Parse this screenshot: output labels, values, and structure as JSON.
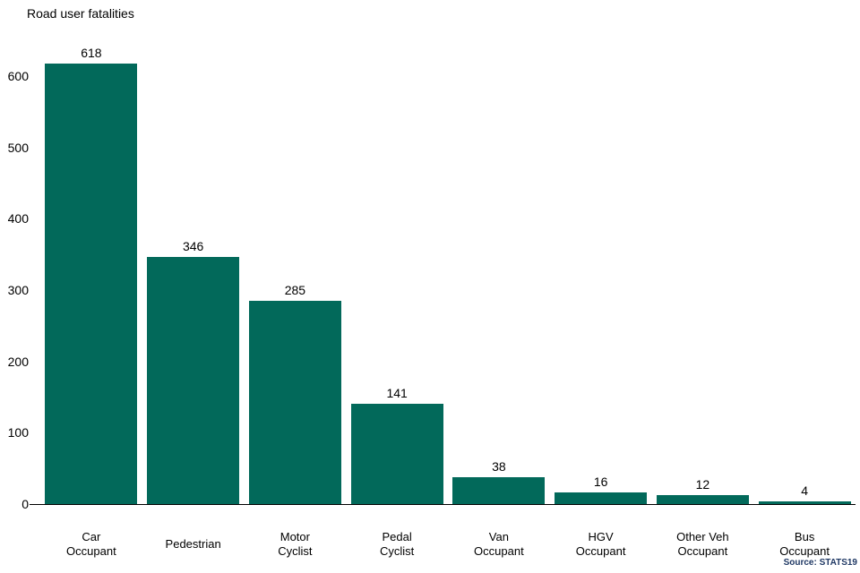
{
  "header": {
    "title": "Road user fatalities"
  },
  "footer": {
    "source": "Source: STATS19"
  },
  "chart_data": {
    "type": "bar",
    "title": "Road user fatalities",
    "categories": [
      "Car\nOccupant",
      "Pedestrian",
      "Motor\nCyclist",
      "Pedal\nCyclist",
      "Van\nOccupant",
      "HGV\nOccupant",
      "Other Veh\nOccupant",
      "Bus\nOccupant"
    ],
    "values": [
      618,
      346,
      285,
      141,
      38,
      16,
      12,
      4
    ],
    "xlabel": "",
    "ylabel": "",
    "ylim": [
      0,
      620
    ],
    "yticks": [
      0,
      100,
      200,
      300,
      400,
      500,
      600
    ],
    "grid": false,
    "legend": "none",
    "value_labels": true,
    "bar_color": "#02695A",
    "axis_color": "#000000",
    "text_color": "#000000",
    "source_color": "#1F3864",
    "source": "Source: STATS19"
  }
}
